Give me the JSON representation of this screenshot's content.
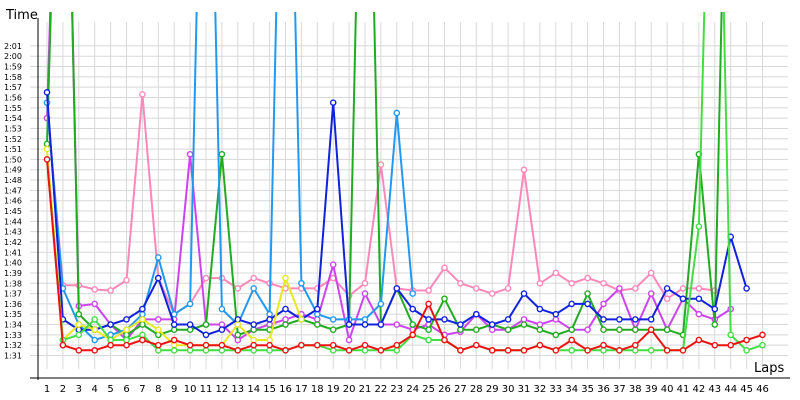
{
  "chart_data": {
    "type": "line",
    "ylabel": "Time",
    "xlabel": "Laps",
    "grid": true,
    "x_categories": [
      "1",
      "2",
      "3",
      "4",
      "5",
      "6",
      "7",
      "8",
      "9",
      "10",
      "11",
      "12",
      "13",
      "14",
      "15",
      "16",
      "17",
      "18",
      "19",
      "20",
      "21",
      "22",
      "23",
      "24",
      "25",
      "26",
      "27",
      "28",
      "29",
      "30",
      "31",
      "32",
      "33",
      "34",
      "35",
      "36",
      "37",
      "38",
      "39",
      "40",
      "41",
      "42",
      "43",
      "44",
      "45",
      "46"
    ],
    "y_ticks": [
      "1:31",
      "1:32",
      "1:33",
      "1:34",
      "1:35",
      "1:36",
      "1:37",
      "1:38",
      "1:39",
      "1:40",
      "1:41",
      "1:42",
      "1:43",
      "1:44",
      "1:45",
      "1:46",
      "1:47",
      "1:48",
      "1:49",
      "1:50",
      "1:51",
      "1:52",
      "1:53",
      "1:54",
      "1:55",
      "1:56",
      "1:57",
      "1:58",
      "1:59",
      "2:00",
      "2:01"
    ],
    "ylim_seconds": [
      90.3,
      123
    ],
    "series": [
      {
        "color": "#ff88bb",
        "values": [
          115.5,
          97.8,
          97.8,
          97.4,
          97.3,
          98.3,
          116.3,
          98.5,
          95.0,
          96.0,
          98.5,
          98.5,
          97.5,
          98.5,
          98.0,
          97.5,
          97.5,
          97.5,
          98.5,
          96.8,
          98.0,
          109.5,
          97.5,
          97.3,
          97.3,
          99.5,
          98.0,
          97.5,
          97.0,
          97.5,
          109.0,
          98.0,
          99.0,
          98.0,
          98.5,
          98.0,
          97.3,
          97.5,
          99.0,
          96.5,
          97.5,
          97.5,
          97.3,
          null,
          null,
          null
        ]
      },
      {
        "color": "#cc44ee",
        "values": [
          114.0,
          165.0,
          95.8,
          96.0,
          94.0,
          92.5,
          94.5,
          94.5,
          94.5,
          110.5,
          94.0,
          94.0,
          92.5,
          93.5,
          94.0,
          94.5,
          95.0,
          94.5,
          99.8,
          92.5,
          97.0,
          94.0,
          94.0,
          93.5,
          94.0,
          93.0,
          93.3,
          95.0,
          93.5,
          93.5,
          94.5,
          94.0,
          94.5,
          93.5,
          93.5,
          96.0,
          97.5,
          93.5,
          97.0,
          93.5,
          96.5,
          95.0,
          94.5,
          95.5,
          null,
          null
        ]
      },
      {
        "color": "#22aa22",
        "values": [
          111.5,
          165.0,
          95.0,
          93.5,
          94.0,
          93.0,
          94.0,
          93.0,
          93.5,
          93.5,
          94.0,
          110.5,
          93.0,
          93.5,
          93.5,
          94.0,
          94.5,
          94.0,
          93.5,
          94.0,
          165.0,
          94.0,
          97.5,
          94.0,
          93.5,
          96.5,
          93.5,
          93.5,
          94.0,
          93.5,
          94.0,
          93.5,
          93.0,
          93.5,
          97.0,
          93.5,
          93.5,
          93.5,
          93.5,
          93.5,
          93.0,
          110.5,
          94.0,
          165.0,
          null,
          null
        ]
      },
      {
        "color": "#2299ee",
        "values": [
          115.5,
          97.5,
          94.0,
          92.5,
          93.0,
          93.5,
          95.0,
          100.5,
          95.0,
          96.0,
          165.0,
          95.5,
          94.0,
          97.5,
          95.0,
          165.0,
          98.0,
          95.0,
          94.5,
          94.5,
          94.5,
          96.0,
          114.5,
          97.0,
          null,
          null,
          null,
          null,
          null,
          null,
          null,
          null,
          null,
          null,
          null,
          null,
          null,
          null,
          null,
          null,
          null,
          null,
          null,
          null,
          null,
          null
        ]
      },
      {
        "color": "#1122dd",
        "values": [
          116.5,
          94.5,
          93.5,
          93.5,
          94.0,
          94.5,
          95.5,
          98.5,
          94.0,
          94.0,
          93.0,
          93.5,
          94.5,
          94.0,
          94.5,
          95.5,
          94.5,
          95.5,
          115.5,
          94.0,
          94.0,
          94.0,
          97.5,
          95.5,
          94.5,
          94.5,
          94.0,
          95.0,
          94.0,
          94.5,
          97.0,
          95.5,
          95.0,
          96.0,
          96.0,
          94.5,
          94.5,
          94.5,
          94.5,
          97.5,
          96.5,
          96.5,
          95.5,
          102.5,
          97.5,
          null
        ]
      },
      {
        "color": "#e8e822",
        "values": [
          111.0,
          92.5,
          94.0,
          93.5,
          92.5,
          93.5,
          94.5,
          93.5,
          92.0,
          92.0,
          92.0,
          92.0,
          94.0,
          92.5,
          92.5,
          98.5,
          94.5,
          null,
          null,
          null,
          null,
          null,
          null,
          null,
          null,
          null,
          null,
          null,
          null,
          null,
          null,
          null,
          null,
          null,
          null,
          null,
          null,
          null,
          null,
          null,
          null,
          null,
          null,
          null,
          null,
          null
        ]
      },
      {
        "color": "#44dd44",
        "values": [
          110.0,
          92.5,
          93.0,
          94.5,
          92.5,
          92.5,
          93.0,
          91.5,
          91.5,
          91.5,
          91.5,
          91.5,
          91.5,
          91.5,
          91.5,
          91.5,
          92.0,
          92.0,
          91.5,
          91.5,
          91.5,
          91.5,
          91.5,
          93.0,
          92.5,
          92.5,
          91.5,
          92.0,
          91.5,
          91.5,
          91.5,
          92.0,
          91.5,
          91.5,
          91.5,
          91.5,
          91.5,
          91.5,
          91.5,
          91.5,
          91.5,
          103.5,
          165.0,
          93.0,
          91.5,
          92.0
        ]
      },
      {
        "color": "#ee1111",
        "values": [
          110.0,
          92.0,
          91.5,
          91.5,
          92.0,
          92.0,
          92.5,
          92.0,
          92.5,
          92.0,
          92.0,
          92.0,
          91.5,
          92.0,
          92.0,
          91.5,
          92.0,
          92.0,
          92.0,
          91.5,
          92.0,
          91.5,
          92.0,
          93.0,
          96.0,
          92.5,
          91.5,
          92.0,
          91.5,
          91.5,
          91.5,
          92.0,
          91.5,
          92.5,
          91.5,
          92.0,
          91.5,
          92.0,
          93.5,
          91.5,
          91.5,
          92.5,
          92.0,
          92.0,
          92.5,
          93.0
        ]
      }
    ]
  }
}
